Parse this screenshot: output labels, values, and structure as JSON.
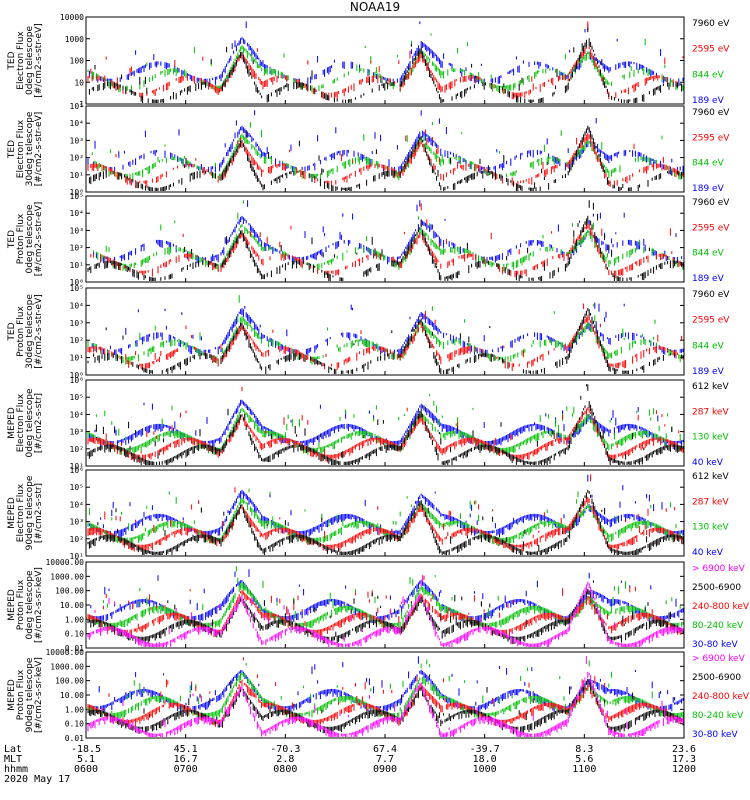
{
  "title": "NOAA19",
  "date": "2020 May 17",
  "x_axis": {
    "rows": [
      {
        "label": "Lat",
        "values": [
          "-18.5",
          "45.1",
          "-70.3",
          "67.4",
          "-39.7",
          "8.3",
          "23.6"
        ]
      },
      {
        "label": "MLT",
        "values": [
          "5.1",
          "16.7",
          "2.8",
          "7.7",
          "18.0",
          "5.6",
          "17.3"
        ]
      },
      {
        "label": "hhmm",
        "values": [
          "0600",
          "0700",
          "0800",
          "0900",
          "1000",
          "1100",
          "1200"
        ]
      }
    ]
  },
  "chart_data": [
    {
      "type": "scatter",
      "ylabel": [
        "TED",
        "Electron Flux",
        "0deg telescope",
        "[#/cm2-s-str-eV]"
      ],
      "ticks": [
        "10000",
        "1000",
        "100",
        "10",
        "1"
      ],
      "ylim": [
        1,
        10000
      ],
      "log": true,
      "legend": [
        {
          "text": "7960 eV",
          "color": "#000000"
        },
        {
          "text": "2595 eV",
          "color": "#ff0000"
        },
        {
          "text": "844 eV",
          "color": "#00c000"
        },
        {
          "text": "189 eV",
          "color": "#0000ff"
        }
      ]
    },
    {
      "type": "scatter",
      "ylabel": [
        "TED",
        "Electron Flux",
        "30deg telescope",
        "[#/cm2-s-str-eV]"
      ],
      "ticks": [
        "10⁵",
        "10⁴",
        "10³",
        "10²",
        "10¹",
        "10⁰"
      ],
      "ylim": [
        1,
        100000
      ],
      "log": true,
      "legend": [
        {
          "text": "7960 eV",
          "color": "#000000"
        },
        {
          "text": "2595 eV",
          "color": "#ff0000"
        },
        {
          "text": "844 eV",
          "color": "#00c000"
        },
        {
          "text": "189 eV",
          "color": "#0000ff"
        }
      ]
    },
    {
      "type": "scatter",
      "ylabel": [
        "TED",
        "Proton Flux",
        "0deg telescope",
        "[#/cm2-s-str-eV]"
      ],
      "ticks": [
        "10⁵",
        "10⁴",
        "10³",
        "10²",
        "10¹",
        "10⁰"
      ],
      "ylim": [
        1,
        100000
      ],
      "log": true,
      "legend": [
        {
          "text": "7960 eV",
          "color": "#000000"
        },
        {
          "text": "2595 eV",
          "color": "#ff0000"
        },
        {
          "text": "844 eV",
          "color": "#00c000"
        },
        {
          "text": "189 eV",
          "color": "#0000ff"
        }
      ]
    },
    {
      "type": "scatter",
      "ylabel": [
        "TED",
        "Proton Flux",
        "30deg telescope",
        "[#/cm2-s-str-eV]"
      ],
      "ticks": [
        "10⁵",
        "10⁴",
        "10³",
        "10²",
        "10¹",
        "10⁰"
      ],
      "ylim": [
        1,
        100000
      ],
      "log": true,
      "legend": [
        {
          "text": "7960 eV",
          "color": "#000000"
        },
        {
          "text": "2595 eV",
          "color": "#ff0000"
        },
        {
          "text": "844 eV",
          "color": "#00c000"
        },
        {
          "text": "189 eV",
          "color": "#0000ff"
        }
      ]
    },
    {
      "type": "scatter",
      "ylabel": [
        "MEPED",
        "Electron Flux",
        "0deg telescope",
        "[#/cm2-s-str]"
      ],
      "ticks": [
        "10⁶",
        "10⁵",
        "10⁴",
        "10³",
        "10²",
        "10¹"
      ],
      "ylim": [
        10,
        1000000
      ],
      "log": true,
      "legend": [
        {
          "text": "612 keV",
          "color": "#000000"
        },
        {
          "text": "287 keV",
          "color": "#ff0000"
        },
        {
          "text": "130 keV",
          "color": "#00c000"
        },
        {
          "text": "40 keV",
          "color": "#0000ff"
        }
      ]
    },
    {
      "type": "scatter",
      "ylabel": [
        "MEPED",
        "Electron Flux",
        "90deg telescope",
        "[#/cm2-s-str]"
      ],
      "ticks": [
        "10⁶",
        "10⁵",
        "10⁴",
        "10³",
        "10²",
        "10¹"
      ],
      "ylim": [
        10,
        1000000
      ],
      "log": true,
      "legend": [
        {
          "text": "612 keV",
          "color": "#000000"
        },
        {
          "text": "287 keV",
          "color": "#ff0000"
        },
        {
          "text": "130 keV",
          "color": "#00c000"
        },
        {
          "text": "40 keV",
          "color": "#0000ff"
        }
      ]
    },
    {
      "type": "scatter",
      "ylabel": [
        "MEPED",
        "Proton Flux",
        "0deg telescope",
        "[#/cm2-s-sr-keV]"
      ],
      "ticks": [
        "10000.00",
        "1000.00",
        "100.00",
        "10.00",
        "1.00",
        "0.10",
        "0.01"
      ],
      "ylim": [
        0.01,
        10000
      ],
      "log": true,
      "legend": [
        {
          "text": "> 6900 keV",
          "color": "#ff00ff"
        },
        {
          "text": "2500-6900",
          "color": "#000000"
        },
        {
          "text": "240-800 keV",
          "color": "#ff0000"
        },
        {
          "text": "80-240 keV",
          "color": "#00c000"
        },
        {
          "text": "30-80 keV",
          "color": "#0000ff"
        }
      ]
    },
    {
      "type": "scatter",
      "ylabel": [
        "MEPED",
        "Proton Flux",
        "90deg telescope",
        "[#/cm2-s-sr-keV]"
      ],
      "ticks": [
        "10000.00",
        "1000.00",
        "100.00",
        "10.00",
        "1.00",
        "0.10",
        "0.01"
      ],
      "ylim": [
        0.01,
        10000
      ],
      "log": true,
      "legend": [
        {
          "text": "> 6900 keV",
          "color": "#ff00ff"
        },
        {
          "text": "2500-6900",
          "color": "#000000"
        },
        {
          "text": "240-800 keV",
          "color": "#ff0000"
        },
        {
          "text": "80-240 keV",
          "color": "#00c000"
        },
        {
          "text": "30-80 keV",
          "color": "#0000ff"
        }
      ]
    }
  ]
}
